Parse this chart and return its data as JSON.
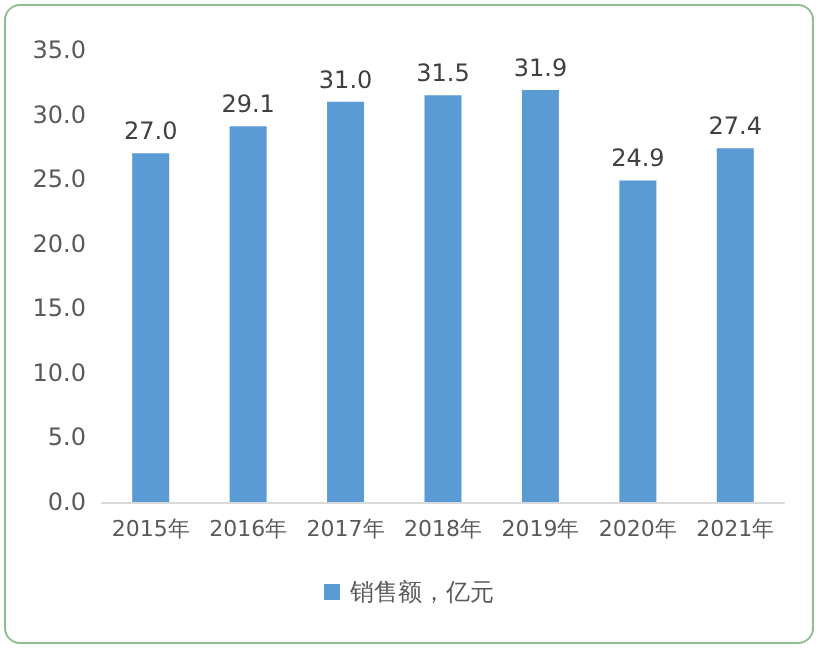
{
  "chart_data": {
    "type": "bar",
    "categories": [
      "2015年",
      "2016年",
      "2017年",
      "2018年",
      "2019年",
      "2020年",
      "2021年"
    ],
    "series": [
      {
        "name": "销售额，亿元",
        "color": "#5b9bd5",
        "values": [
          27.0,
          29.1,
          31.0,
          31.5,
          31.9,
          24.9,
          27.4
        ],
        "value_labels": [
          "27.0",
          "29.1",
          "31.0",
          "31.5",
          "31.9",
          "24.9",
          "27.4"
        ]
      }
    ],
    "ylim": [
      0,
      35
    ],
    "yticks": [
      {
        "value": 0,
        "label": "0.0"
      },
      {
        "value": 5,
        "label": "5.0"
      },
      {
        "value": 10,
        "label": "10.0"
      },
      {
        "value": 15,
        "label": "15.0"
      },
      {
        "value": 20,
        "label": "20.0"
      },
      {
        "value": 25,
        "label": "25.0"
      },
      {
        "value": 30,
        "label": "30.0"
      },
      {
        "value": 35,
        "label": "35.0"
      }
    ],
    "grid": false,
    "legend": "bottom"
  }
}
